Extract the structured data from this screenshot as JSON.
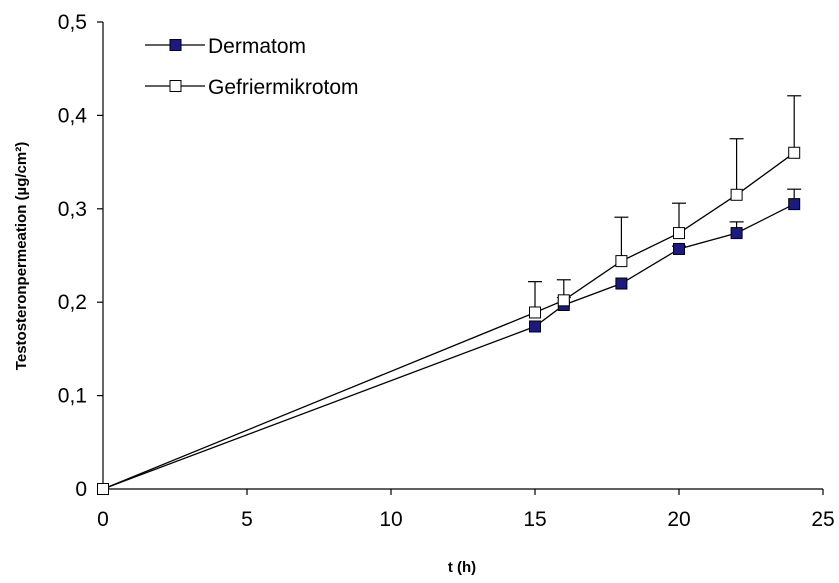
{
  "chart_data": {
    "type": "line",
    "title": "",
    "xlabel": "t (h)",
    "ylabel": "Testosteronpermeation (µg/cm²)",
    "xlim": [
      0,
      25
    ],
    "ylim": [
      0,
      0.5
    ],
    "x_ticks": [
      0,
      5,
      10,
      15,
      20,
      25
    ],
    "x_tick_labels": [
      "0",
      "5",
      "10",
      "15",
      "20",
      "25"
    ],
    "y_ticks": [
      0,
      0.1,
      0.2,
      0.3,
      0.4,
      0.5
    ],
    "y_tick_labels": [
      "0",
      "0,1",
      "0,2",
      "0,3",
      "0,4",
      "0,5"
    ],
    "grid": false,
    "legend_position": "top-left",
    "series": [
      {
        "name": "Dermatom",
        "marker": "filled-square",
        "marker_color": "#1a1a80",
        "x": [
          0,
          15,
          16,
          18,
          20,
          22,
          24
        ],
        "y": [
          0,
          0.174,
          0.197,
          0.22,
          0.257,
          0.274,
          0.305
        ],
        "error_up": [
          0,
          0,
          0.008,
          0,
          0.003,
          0.012,
          0.016
        ]
      },
      {
        "name": "Gefriermikrotom",
        "marker": "open-square",
        "marker_color": "#ffffff",
        "x": [
          0,
          15,
          16,
          18,
          20,
          22,
          24
        ],
        "y": [
          0,
          0.189,
          0.202,
          0.244,
          0.274,
          0.315,
          0.36
        ],
        "error_up": [
          0,
          0.033,
          0.022,
          0.047,
          0.032,
          0.06,
          0.061
        ]
      }
    ]
  }
}
